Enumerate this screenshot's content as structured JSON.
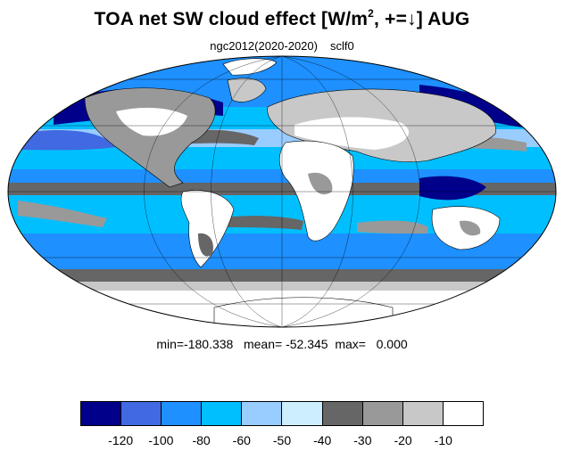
{
  "title": {
    "text_before": "TOA net SW cloud effect [W/m",
    "superscript": "2",
    "text_after": ", +=↓]  AUG"
  },
  "subtitle": {
    "run": "ngc2012(2020-2020)",
    "variable": "sclf0"
  },
  "stats": {
    "text": "min=-180.338   mean= -52.345  max=   0.000"
  },
  "legend": {
    "colors": [
      "#00008b",
      "#4169e1",
      "#1e90ff",
      "#00bfff",
      "#99ccff",
      "#cceeff",
      "#666666",
      "#999999",
      "#c8c8c8",
      "#ffffff"
    ],
    "tick_labels": [
      "-120",
      "-100",
      "-80",
      "-60",
      "-50",
      "-40",
      "-30",
      "-20",
      "-10"
    ]
  },
  "map": {
    "projection": "mollweide",
    "field_colors": {
      "deep": "#00008b",
      "strong": "#4169e1",
      "medium": "#1e90ff",
      "moderate": "#00bfff",
      "light": "#99ccff",
      "faint": "#cceeff",
      "gray_dark": "#666666",
      "gray_mid": "#999999",
      "gray_light": "#c8c8c8",
      "land": "#ffffff"
    }
  }
}
